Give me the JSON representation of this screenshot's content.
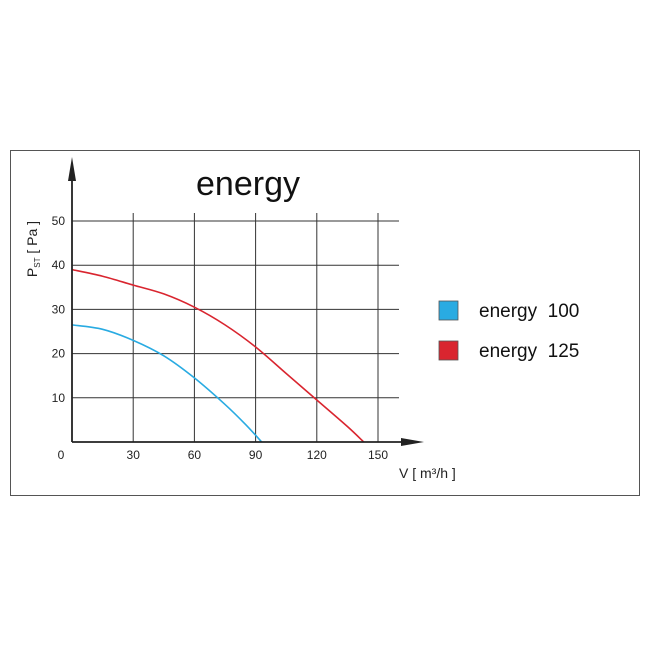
{
  "chart_data": {
    "type": "line",
    "title": "energy",
    "xlabel": "V [ m³/h ]",
    "ylabel": "P_ST [ Pa ]",
    "xlim": [
      0,
      165
    ],
    "ylim": [
      0,
      53
    ],
    "xticks": [
      0,
      30,
      60,
      90,
      120,
      150
    ],
    "yticks": [
      10,
      20,
      30,
      40,
      50
    ],
    "grid": true,
    "legend_position": "right",
    "series": [
      {
        "name": "energy  100",
        "color": "#29abe2",
        "x": [
          0,
          15,
          30,
          45,
          60,
          75,
          85,
          93
        ],
        "y": [
          26.5,
          25.5,
          23,
          19.5,
          14.5,
          8.5,
          4,
          0
        ]
      },
      {
        "name": "energy  125",
        "color": "#d9252f",
        "x": [
          0,
          15,
          30,
          45,
          60,
          75,
          90,
          105,
          120,
          135,
          143
        ],
        "y": [
          39,
          37.5,
          35.5,
          33.5,
          30.5,
          26.5,
          21.5,
          15.5,
          9.5,
          3.5,
          0
        ]
      }
    ]
  }
}
